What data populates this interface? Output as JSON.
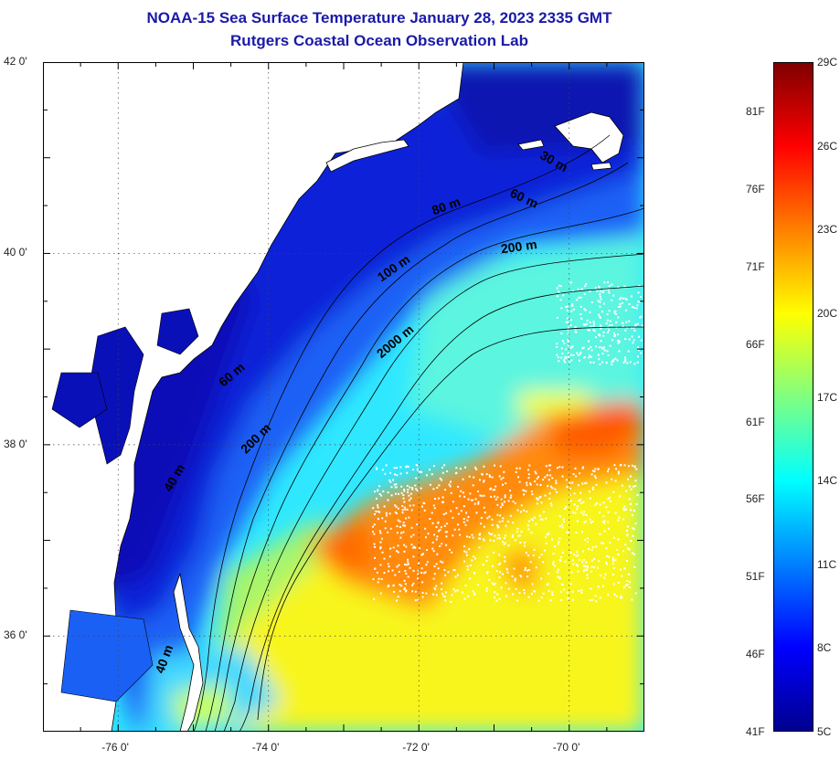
{
  "title": {
    "line1": "NOAA-15 Sea Surface Temperature January 28, 2023 2335 GMT",
    "line2": "Rutgers Coastal Ocean Observation Lab"
  },
  "map": {
    "lon_range": [
      -77,
      -69
    ],
    "lat_range": [
      35,
      42
    ],
    "lon_ticks": [
      {
        "value": -76,
        "label": "-76 0'"
      },
      {
        "value": -74,
        "label": "-74 0'"
      },
      {
        "value": -72,
        "label": "-72 0'"
      },
      {
        "value": -70,
        "label": "-70 0'"
      }
    ],
    "lat_ticks": [
      {
        "value": 42,
        "label": "42 0'"
      },
      {
        "value": 40,
        "label": "40 0'"
      },
      {
        "value": 38,
        "label": "38 0'"
      },
      {
        "value": 36,
        "label": "36 0'"
      }
    ],
    "grid": "dotted",
    "land_color": "#ffffff",
    "isobath_labels": [
      {
        "text": "30 m",
        "lon": -70.4,
        "lat": 41.0,
        "rot": 30
      },
      {
        "text": "60 m",
        "lon": -70.8,
        "lat": 40.6,
        "rot": 25
      },
      {
        "text": "80 m",
        "lon": -71.8,
        "lat": 40.4,
        "rot": -20
      },
      {
        "text": "200 m",
        "lon": -70.9,
        "lat": 40.0,
        "rot": -8
      },
      {
        "text": "100 m",
        "lon": -72.5,
        "lat": 39.7,
        "rot": -35
      },
      {
        "text": "2000 m",
        "lon": -72.5,
        "lat": 38.9,
        "rot": -40
      },
      {
        "text": "60 m",
        "lon": -74.6,
        "lat": 38.6,
        "rot": -40
      },
      {
        "text": "200 m",
        "lon": -74.3,
        "lat": 37.9,
        "rot": -45
      },
      {
        "text": "40 m",
        "lon": -75.3,
        "lat": 37.5,
        "rot": -60
      },
      {
        "text": "40 m",
        "lon": -75.4,
        "lat": 35.6,
        "rot": -70
      }
    ]
  },
  "colorbar": {
    "min_c": 5,
    "max_c": 29,
    "celsius_labels": [
      {
        "value": 29,
        "label": "29C"
      },
      {
        "value": 26,
        "label": "26C"
      },
      {
        "value": 23,
        "label": "23C"
      },
      {
        "value": 20,
        "label": "20C"
      },
      {
        "value": 17,
        "label": "17C"
      },
      {
        "value": 14,
        "label": "14C"
      },
      {
        "value": 11,
        "label": "11C"
      },
      {
        "value": 8,
        "label": "8C"
      },
      {
        "value": 5,
        "label": "5C"
      }
    ],
    "fahrenheit_labels": [
      {
        "value": 81,
        "label": "81F"
      },
      {
        "value": 76,
        "label": "76F"
      },
      {
        "value": 71,
        "label": "71F"
      },
      {
        "value": 66,
        "label": "66F"
      },
      {
        "value": 61,
        "label": "61F"
      },
      {
        "value": 56,
        "label": "56F"
      },
      {
        "value": 51,
        "label": "51F"
      },
      {
        "value": 46,
        "label": "46F"
      },
      {
        "value": 41,
        "label": "41F"
      }
    ],
    "gradient_colors": [
      "#00008f",
      "#0000ff",
      "#0080ff",
      "#00ffff",
      "#80ff80",
      "#ffff00",
      "#ff8000",
      "#ff0000",
      "#800000"
    ]
  }
}
